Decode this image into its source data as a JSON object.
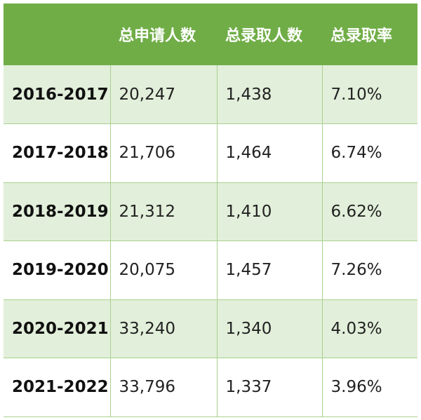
{
  "colors": {
    "header_bg": "#70ad47",
    "shaded_row_bg": "#e2efda",
    "plain_row_bg": "#ffffff",
    "border": "#a9d18e"
  },
  "table": {
    "headers": [
      "",
      "总申请人数",
      "总录取人数",
      "总录取率"
    ],
    "rows": [
      {
        "year": "2016-2017",
        "applicants": "20,247",
        "admitted": "1,438",
        "rate": "7.10%"
      },
      {
        "year": "2017-2018",
        "applicants": "21,706",
        "admitted": "1,464",
        "rate": "6.74%"
      },
      {
        "year": "2018-2019",
        "applicants": "21,312",
        "admitted": "1,410",
        "rate": "6.62%"
      },
      {
        "year": "2019-2020",
        "applicants": "20,075",
        "admitted": "1,457",
        "rate": "7.26%"
      },
      {
        "year": "2020-2021",
        "applicants": "33,240",
        "admitted": "1,340",
        "rate": "4.03%"
      },
      {
        "year": "2021-2022",
        "applicants": "33,796",
        "admitted": "1,337",
        "rate": "3.96%"
      }
    ]
  }
}
